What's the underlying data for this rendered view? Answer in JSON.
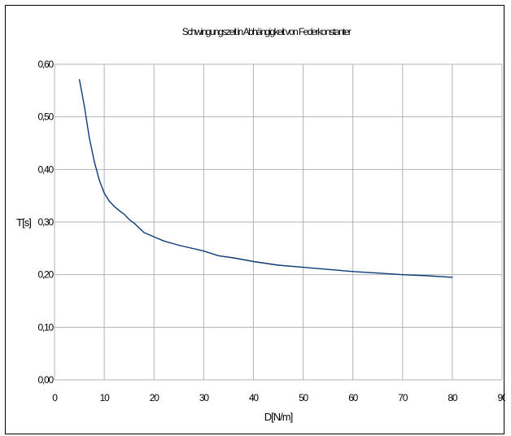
{
  "chart_data": {
    "type": "line",
    "title": "Schwingungszeit in Abhängigkeit von Federkonstanter",
    "xlabel": "D[N/m]",
    "ylabel": "T[s]",
    "xlim": [
      0,
      90
    ],
    "ylim": [
      0.0,
      0.6
    ],
    "x_ticks": [
      "0",
      "10",
      "20",
      "30",
      "40",
      "50",
      "60",
      "70",
      "80",
      "90"
    ],
    "y_ticks": [
      "0,00",
      "0,10",
      "0,20",
      "0,30",
      "0,40",
      "0,50",
      "0,60"
    ],
    "grid": true,
    "series": [
      {
        "color": "#0b3a78",
        "x": [
          5,
          6,
          7,
          8,
          9,
          10,
          11,
          12,
          13,
          14,
          15,
          16,
          18,
          20,
          22,
          25,
          30,
          33,
          36,
          40,
          45,
          50,
          55,
          60,
          65,
          70,
          75,
          80
        ],
        "values": [
          0.571,
          0.52,
          0.46,
          0.415,
          0.38,
          0.355,
          0.34,
          0.33,
          0.322,
          0.315,
          0.305,
          0.298,
          0.28,
          0.272,
          0.264,
          0.256,
          0.245,
          0.236,
          0.232,
          0.225,
          0.218,
          0.214,
          0.21,
          0.206,
          0.203,
          0.2,
          0.198,
          0.195
        ]
      }
    ]
  }
}
